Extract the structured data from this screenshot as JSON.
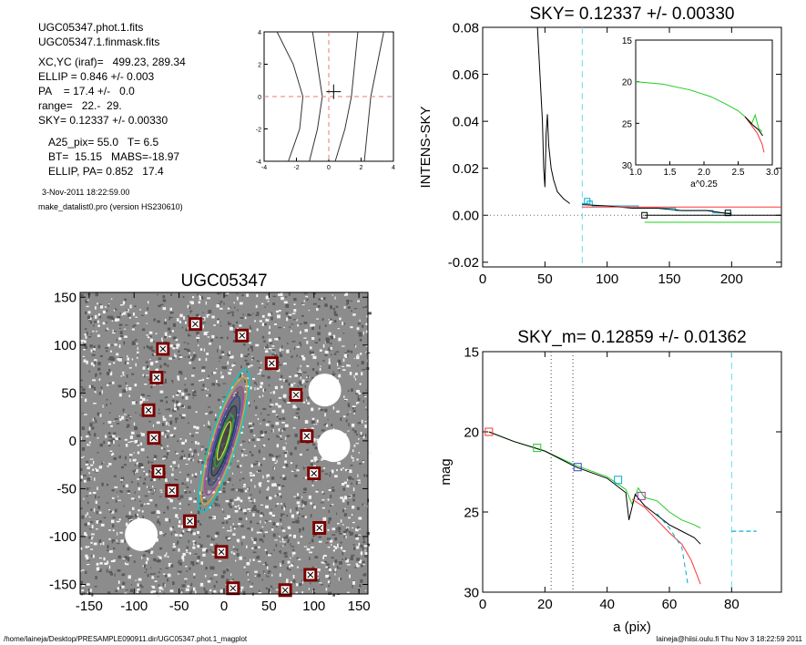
{
  "info": {
    "line1": "UGC05347.phot.1.fits",
    "line2": "UGC05347.1.finmask.fits",
    "xcyc": "XC,YC (iraf)=   499.23, 289.34",
    "ellip": "ELLIP = 0.846 +/- 0.003",
    "pa": "PA    = 17.4 +/-   0.0",
    "range": "range=   22.-  29.",
    "sky": "SKY= 0.12337 +/- 0.00330",
    "a25": "A25_pix= 55.0   T= 6.5",
    "bt": "BT=  15.15   MABS=-18.97",
    "ellip_pa": "ELLIP, PA= 0.852   17.4",
    "date": "3-Nov-2011 18:22:59.00",
    "program": "make_datalist0.pro (version HS230610)"
  },
  "footer": {
    "left": "/home/laineja/Desktop/PRESAMPLE090911.dir/UGC05347.phot.1_magplot",
    "right": "laineja@hiisi.oulu.fi  Thu Nov  3 18:22:59 2011"
  },
  "chart_data": [
    {
      "id": "contour-plot",
      "type": "line",
      "title": "",
      "xlim": [
        -4,
        4
      ],
      "ylim": [
        -4,
        4
      ],
      "xticks": [
        "-4",
        "-2",
        "0",
        "2",
        "4"
      ],
      "yticks": [
        "-4",
        "-2",
        "0",
        "2",
        "4"
      ],
      "center_marker": [
        0.3,
        0.3
      ],
      "series": [
        {
          "values": [
            [
              -3.2,
              4
            ],
            [
              -2.2,
              2
            ],
            [
              -1.6,
              0
            ],
            [
              -1.8,
              -2
            ],
            [
              -2.5,
              -4
            ]
          ]
        },
        {
          "values": [
            [
              -1,
              4
            ],
            [
              -0.7,
              2
            ],
            [
              -0.4,
              0
            ],
            [
              -0.7,
              -2
            ],
            [
              -1.2,
              -4
            ]
          ]
        },
        {
          "values": [
            [
              1.8,
              4
            ],
            [
              1.6,
              2
            ],
            [
              1.4,
              0
            ],
            [
              1.0,
              -2
            ],
            [
              0.4,
              -4
            ]
          ]
        },
        {
          "values": [
            [
              3.4,
              4
            ],
            [
              3.0,
              2
            ],
            [
              2.6,
              0
            ],
            [
              2.4,
              -2
            ],
            [
              2.2,
              -4
            ]
          ]
        }
      ],
      "crosshair_color": "#e87a7a"
    },
    {
      "id": "sky-plot",
      "type": "line",
      "title": "SKY= 0.12337 +/- 0.00330",
      "xlabel": "",
      "ylabel": "INTENS-SKY",
      "xlim": [
        0,
        240
      ],
      "ylim": [
        -0.022,
        0.08
      ],
      "xticks": [
        0,
        50,
        100,
        150,
        200
      ],
      "xticklabels": [
        "0",
        "50",
        "100",
        "150",
        "200"
      ],
      "yticks": [
        -0.02,
        0,
        0.02,
        0.04,
        0.06,
        0.08
      ],
      "yticklabels": [
        "-0.02",
        "0.00",
        "0.02",
        "0.04",
        "0.06",
        "0.08"
      ],
      "vline_x": 80,
      "series": [
        {
          "color": "#000",
          "values": [
            [
              44,
              0.08
            ],
            [
              46,
              0.06
            ],
            [
              48,
              0.04
            ],
            [
              49,
              0.02
            ],
            [
              50,
              0.012
            ],
            [
              51,
              0.035
            ],
            [
              52,
              0.043
            ],
            [
              53,
              0.03
            ],
            [
              55,
              0.02
            ],
            [
              57,
              0.015
            ],
            [
              60,
              0.01
            ],
            [
              65,
              0.007
            ],
            [
              70,
              0.005
            ]
          ]
        },
        {
          "color": "#00aacc",
          "step": true,
          "values": [
            [
              80,
              0.005
            ],
            [
              84,
              0.006
            ],
            [
              88,
              0.004
            ],
            [
              110,
              0.004
            ],
            [
              125,
              0.003
            ],
            [
              140,
              0.003
            ],
            [
              155,
              0.002
            ],
            [
              170,
              0.002
            ],
            [
              185,
              0.001
            ],
            [
              200,
              0.001
            ]
          ]
        },
        {
          "color": "#000",
          "values": [
            [
              80,
              0.0045
            ],
            [
              100,
              0.004
            ],
            [
              120,
              0.003
            ],
            [
              140,
              0.003
            ],
            [
              160,
              0.002
            ],
            [
              180,
              0.002
            ],
            [
              200,
              0.0005
            ]
          ]
        },
        {
          "color": "#ff3333",
          "values": [
            [
              80,
              0.0035
            ],
            [
              240,
              0.0035
            ]
          ]
        },
        {
          "color": "#000",
          "values": [
            [
              130,
              0
            ],
            [
              240,
              0
            ]
          ]
        },
        {
          "color": "#22cc22",
          "values": [
            [
              130,
              -0.003
            ],
            [
              240,
              -0.003
            ]
          ]
        }
      ]
    },
    {
      "id": "inset-plot",
      "type": "line",
      "title": "",
      "xlabel": "a^0.25",
      "ylabel": "",
      "xlim": [
        1.0,
        3.0
      ],
      "ylim": [
        30,
        15
      ],
      "xticks": [
        1.0,
        1.5,
        2.0,
        2.5,
        3.0
      ],
      "xticklabels": [
        "1.0",
        "1.5",
        "2.0",
        "2.5",
        "3.0"
      ],
      "yticks": [
        15,
        20,
        25,
        30
      ],
      "yticklabels": [
        "15",
        "20",
        "25",
        "30"
      ],
      "series": [
        {
          "color": "#22cc22",
          "values": [
            [
              1.0,
              20.0
            ],
            [
              1.4,
              20.3
            ],
            [
              1.8,
              21.0
            ],
            [
              2.1,
              21.8
            ],
            [
              2.3,
              22.6
            ],
            [
              2.5,
              23.5
            ],
            [
              2.6,
              24.2
            ],
            [
              2.7,
              25.0
            ],
            [
              2.75,
              24.0
            ],
            [
              2.8,
              25.6
            ],
            [
              2.85,
              26.0
            ]
          ]
        },
        {
          "color": "#ff3333",
          "values": [
            [
              2.6,
              24.2
            ],
            [
              2.7,
              25.3
            ],
            [
              2.78,
              26.2
            ],
            [
              2.85,
              27.5
            ],
            [
              2.88,
              28.5
            ]
          ]
        },
        {
          "color": "#000",
          "values": [
            [
              2.6,
              24.2
            ],
            [
              2.7,
              25.1
            ],
            [
              2.8,
              25.8
            ],
            [
              2.86,
              26.5
            ]
          ]
        }
      ]
    },
    {
      "id": "image-plot",
      "type": "scatter",
      "title": "UGC05347",
      "xlim": [
        -160,
        160
      ],
      "ylim": [
        -160,
        155
      ],
      "xticks": [
        -150,
        -100,
        -50,
        0,
        50,
        100,
        150
      ],
      "xticklabels": [
        "-150",
        "-100",
        "-50",
        "0",
        "50",
        "100",
        "150"
      ],
      "yticks": [
        -150,
        -100,
        -50,
        0,
        50,
        100,
        150
      ],
      "yticklabels": [
        "-150",
        "-100",
        "-50",
        "0",
        "50",
        "100",
        "150"
      ],
      "marker_points": [
        [
          -32,
          122
        ],
        [
          -68,
          96
        ],
        [
          20,
          110
        ],
        [
          -75,
          66
        ],
        [
          53,
          81
        ],
        [
          80,
          48
        ],
        [
          -84,
          32
        ],
        [
          -78,
          3
        ],
        [
          92,
          5
        ],
        [
          -73,
          -32
        ],
        [
          100,
          -34
        ],
        [
          -58,
          -52
        ],
        [
          -38,
          -84
        ],
        [
          106,
          -91
        ],
        [
          -3,
          -116
        ],
        [
          96,
          -140
        ],
        [
          10,
          -154
        ],
        [
          68,
          -156
        ]
      ],
      "galaxy": {
        "center": [
          0,
          0
        ],
        "semi_major": 78,
        "semi_minor": 13,
        "pa_deg": 17.4
      }
    },
    {
      "id": "mag-plot",
      "type": "line",
      "title": "SKY_m=  0.12859 +/- 0.01362",
      "xlabel": "a (pix)",
      "ylabel": "mag",
      "xlim": [
        0,
        96
      ],
      "ylim": [
        30,
        15
      ],
      "xticks": [
        0,
        20,
        40,
        60,
        80
      ],
      "xticklabels": [
        "0",
        "20",
        "40",
        "60",
        "80"
      ],
      "yticks": [
        15,
        20,
        25,
        30
      ],
      "yticklabels": [
        "15",
        "20",
        "25",
        "30"
      ],
      "vlines_dotted": [
        22,
        29
      ],
      "vline_dash_x": 80,
      "hline_dash": {
        "x0": 80,
        "x1": 88,
        "y": 26.2
      },
      "square_markers": [
        {
          "x": 2,
          "y": 20.0,
          "color": "#ff3333"
        },
        {
          "x": 17.5,
          "y": 21.0,
          "color": "#22cc22"
        },
        {
          "x": 30.5,
          "y": 22.2,
          "color": "#3344cc"
        },
        {
          "x": 43.5,
          "y": 23.0,
          "color": "#00aacc"
        },
        {
          "x": 51,
          "y": 24.0,
          "color": "#aa33aa"
        }
      ],
      "series": [
        {
          "color": "#22cc22",
          "values": [
            [
              2,
              20.0
            ],
            [
              10,
              20.6
            ],
            [
              20,
              21.2
            ],
            [
              30,
              22.1
            ],
            [
              40,
              22.8
            ],
            [
              46,
              23.6
            ],
            [
              48,
              24.5
            ],
            [
              50,
              23.5
            ],
            [
              52,
              24.1
            ],
            [
              56,
              24.3
            ],
            [
              60,
              25.0
            ],
            [
              64,
              25.5
            ],
            [
              68,
              25.8
            ],
            [
              70,
              26.0
            ]
          ]
        },
        {
          "color": "#000",
          "values": [
            [
              2,
              20.0
            ],
            [
              10,
              20.6
            ],
            [
              20,
              21.2
            ],
            [
              30,
              22.2
            ],
            [
              40,
              22.9
            ],
            [
              46,
              23.8
            ],
            [
              47,
              25.5
            ],
            [
              49,
              23.9
            ],
            [
              52,
              24.6
            ],
            [
              56,
              25.2
            ],
            [
              60,
              25.8
            ],
            [
              64,
              26.2
            ],
            [
              68,
              26.6
            ],
            [
              70,
              27.0
            ]
          ]
        },
        {
          "color": "#ff3333",
          "values": [
            [
              48,
              24.2
            ],
            [
              52,
              24.7
            ],
            [
              56,
              25.5
            ],
            [
              60,
              26.3
            ],
            [
              64,
              27.0
            ],
            [
              67,
              28.0
            ],
            [
              70,
              29.5
            ]
          ]
        },
        {
          "color": "#00aacc",
          "dashed": true,
          "values": [
            [
              56,
              25.1
            ],
            [
              60,
              26.0
            ],
            [
              64,
              27.2
            ],
            [
              66,
              29.6
            ]
          ]
        }
      ]
    }
  ]
}
